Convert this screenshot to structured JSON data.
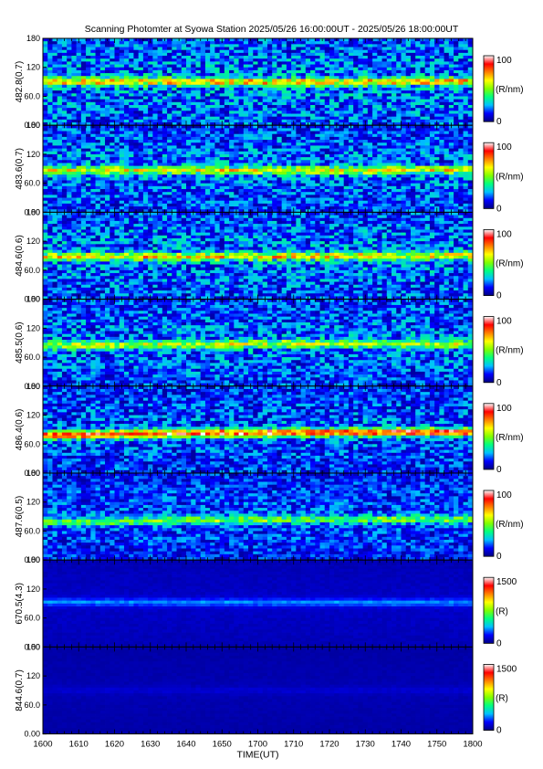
{
  "title": "Scanning Photomter at Syowa Station 2025/05/26 16:00:00UT - 2025/05/26 18:00:00UT",
  "chart_data": {
    "type": "heatmap",
    "xlabel": "TIME(UT)",
    "x_tick_labels": [
      "1600",
      "1610",
      "1620",
      "1630",
      "1640",
      "1650",
      "1700",
      "1710",
      "1720",
      "1730",
      "1740",
      "1750",
      "1800"
    ],
    "y_tick_labels": [
      "0.00",
      "60.0",
      "120",
      "180"
    ],
    "ylim": [
      0,
      180
    ],
    "colormap": [
      "#000080",
      "#0000ff",
      "#00c0ff",
      "#00ff80",
      "#80ff00",
      "#ffff00",
      "#ff8000",
      "#ff0000",
      "#ffffff"
    ],
    "panels": [
      {
        "ylabel": "482.8(0.7)",
        "cbar_max_label": "100",
        "cbar_min_label": "0",
        "cbar_unit": "(R/nm)",
        "vmax": 100,
        "band_center": [
          90,
          90,
          89,
          91
        ],
        "band_intensity": 0.45,
        "noise": 0.35,
        "background": 0.22
      },
      {
        "ylabel": "483.6(0.7)",
        "cbar_max_label": "100",
        "cbar_min_label": "0",
        "cbar_unit": "(R/nm)",
        "vmax": 100,
        "band_center": [
          86,
          87,
          86,
          88
        ],
        "band_intensity": 0.42,
        "noise": 0.32,
        "background": 0.2
      },
      {
        "ylabel": "484.6(0.6)",
        "cbar_max_label": "100",
        "cbar_min_label": "0",
        "cbar_unit": "(R/nm)",
        "vmax": 100,
        "band_center": [
          88,
          88,
          89,
          90
        ],
        "band_intensity": 0.42,
        "noise": 0.34,
        "background": 0.21
      },
      {
        "ylabel": "485.5(0.6)",
        "cbar_max_label": "100",
        "cbar_min_label": "0",
        "cbar_unit": "(R/nm)",
        "vmax": 100,
        "band_center": [
          84,
          86,
          88,
          86
        ],
        "band_intensity": 0.36,
        "noise": 0.32,
        "background": 0.2
      },
      {
        "ylabel": "486.4(0.6)",
        "cbar_max_label": "100",
        "cbar_min_label": "0",
        "cbar_unit": "(R/nm)",
        "vmax": 100,
        "band_center": [
          78,
          82,
          84,
          85
        ],
        "band_intensity": 0.7,
        "noise": 0.3,
        "background": 0.18
      },
      {
        "ylabel": "487.6(0.5)",
        "cbar_max_label": "100",
        "cbar_min_label": "0",
        "cbar_unit": "(R/nm)",
        "vmax": 100,
        "band_center": [
          78,
          82,
          84,
          84
        ],
        "band_intensity": 0.3,
        "noise": 0.26,
        "background": 0.17
      },
      {
        "ylabel": "670.5(4.3)",
        "cbar_max_label": "1500",
        "cbar_min_label": "0",
        "cbar_unit": "(R)",
        "vmax": 1500,
        "band_center": [
          93,
          92,
          92,
          92
        ],
        "band_intensity": 0.15,
        "noise": 0.03,
        "background": 0.07
      },
      {
        "ylabel": "844.6(0.7)",
        "cbar_max_label": "1500",
        "cbar_min_label": "0",
        "cbar_unit": "(R)",
        "vmax": 1500,
        "band_center": [
          90,
          90,
          90,
          90
        ],
        "band_intensity": 0.03,
        "noise": 0.02,
        "background": 0.05
      }
    ]
  }
}
